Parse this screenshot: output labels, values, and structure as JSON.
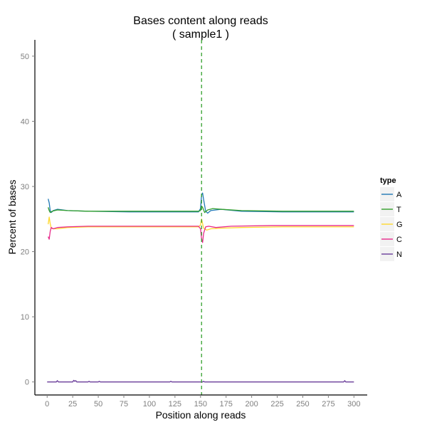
{
  "chart_data": {
    "type": "line",
    "title": "Bases content along reads",
    "subtitle": "( sample1 )",
    "xlabel": "Position along reads",
    "ylabel": "Percent of bases",
    "xlim": [
      -12,
      313
    ],
    "ylim": [
      -2,
      52.5
    ],
    "x_ticks": [
      0,
      25,
      50,
      75,
      100,
      125,
      150,
      175,
      200,
      225,
      250,
      275,
      300
    ],
    "x_tick_labels": [
      "0",
      "25",
      "50",
      "75",
      "100",
      "125",
      "150",
      "175",
      "200",
      "225",
      "250",
      "275",
      "300"
    ],
    "y_ticks": [
      0,
      10,
      20,
      30,
      40,
      50
    ],
    "y_tick_labels": [
      "0",
      "10",
      "20",
      "30",
      "40",
      "50"
    ],
    "grid": false,
    "reference_line": {
      "x": 151,
      "style": "dashed",
      "color": "#33a02c"
    },
    "legend": {
      "title": "type",
      "position": "right"
    },
    "series": [
      {
        "name": "A",
        "color": "#1f78b4",
        "points": [
          [
            1,
            28.1
          ],
          [
            2,
            27.5
          ],
          [
            3,
            26.3
          ],
          [
            4,
            26.0
          ],
          [
            6,
            26.3
          ],
          [
            10,
            26.5
          ],
          [
            20,
            26.3
          ],
          [
            40,
            26.2
          ],
          [
            80,
            26.1
          ],
          [
            120,
            26.1
          ],
          [
            148,
            26.1
          ],
          [
            150,
            26.6
          ],
          [
            151,
            28.7
          ],
          [
            152,
            29.0
          ],
          [
            153,
            28.0
          ],
          [
            155,
            26.2
          ],
          [
            157,
            25.9
          ],
          [
            160,
            26.3
          ],
          [
            170,
            26.5
          ],
          [
            190,
            26.2
          ],
          [
            230,
            26.1
          ],
          [
            270,
            26.1
          ],
          [
            300,
            26.1
          ]
        ]
      },
      {
        "name": "T",
        "color": "#33a02c",
        "points": [
          [
            1,
            26.8
          ],
          [
            2,
            26.3
          ],
          [
            3,
            26.0
          ],
          [
            5,
            26.2
          ],
          [
            10,
            26.4
          ],
          [
            20,
            26.3
          ],
          [
            40,
            26.2
          ],
          [
            80,
            26.2
          ],
          [
            120,
            26.2
          ],
          [
            148,
            26.2
          ],
          [
            150,
            26.3
          ],
          [
            151,
            27.0
          ],
          [
            152,
            26.8
          ],
          [
            154,
            26.0
          ],
          [
            157,
            26.4
          ],
          [
            162,
            26.6
          ],
          [
            170,
            26.5
          ],
          [
            190,
            26.3
          ],
          [
            230,
            26.2
          ],
          [
            270,
            26.2
          ],
          [
            300,
            26.2
          ]
        ]
      },
      {
        "name": "G",
        "color": "#ffd92f",
        "points": [
          [
            1,
            24.2
          ],
          [
            2,
            25.3
          ],
          [
            3,
            24.3
          ],
          [
            4,
            23.6
          ],
          [
            6,
            23.5
          ],
          [
            10,
            23.5
          ],
          [
            20,
            23.7
          ],
          [
            40,
            23.8
          ],
          [
            80,
            23.8
          ],
          [
            120,
            23.8
          ],
          [
            148,
            23.8
          ],
          [
            150,
            24.1
          ],
          [
            151,
            25.0
          ],
          [
            152,
            24.3
          ],
          [
            153,
            23.6
          ],
          [
            156,
            23.3
          ],
          [
            160,
            23.5
          ],
          [
            170,
            23.6
          ],
          [
            190,
            23.7
          ],
          [
            230,
            23.8
          ],
          [
            270,
            23.8
          ],
          [
            300,
            23.8
          ]
        ]
      },
      {
        "name": "C",
        "color": "#e7298a",
        "points": [
          [
            1,
            22.3
          ],
          [
            2,
            21.9
          ],
          [
            3,
            23.1
          ],
          [
            4,
            23.7
          ],
          [
            6,
            23.5
          ],
          [
            10,
            23.7
          ],
          [
            20,
            23.8
          ],
          [
            40,
            23.9
          ],
          [
            80,
            23.9
          ],
          [
            120,
            23.9
          ],
          [
            148,
            23.9
          ],
          [
            150,
            23.5
          ],
          [
            151,
            22.0
          ],
          [
            152,
            21.4
          ],
          [
            153,
            22.8
          ],
          [
            155,
            23.8
          ],
          [
            158,
            23.9
          ],
          [
            165,
            23.7
          ],
          [
            180,
            23.9
          ],
          [
            220,
            24.0
          ],
          [
            260,
            24.0
          ],
          [
            300,
            24.0
          ]
        ]
      },
      {
        "name": "N",
        "color": "#6a3d9a",
        "points": [
          [
            0,
            0.0
          ],
          [
            9,
            0.0
          ],
          [
            10,
            0.2
          ],
          [
            11,
            0.0
          ],
          [
            25,
            0.0
          ],
          [
            26,
            0.25
          ],
          [
            27,
            0.1
          ],
          [
            28,
            0.2
          ],
          [
            29,
            0.0
          ],
          [
            40,
            0.0
          ],
          [
            41,
            0.1
          ],
          [
            42,
            0.0
          ],
          [
            50,
            0.0
          ],
          [
            51,
            0.1
          ],
          [
            52,
            0.0
          ],
          [
            120,
            0.0
          ],
          [
            121,
            0.1
          ],
          [
            122,
            0.0
          ],
          [
            152,
            0.0
          ],
          [
            153,
            0.1
          ],
          [
            154,
            0.0
          ],
          [
            290,
            0.0
          ],
          [
            291,
            0.2
          ],
          [
            292,
            0.0
          ],
          [
            300,
            0.0
          ]
        ]
      }
    ]
  }
}
